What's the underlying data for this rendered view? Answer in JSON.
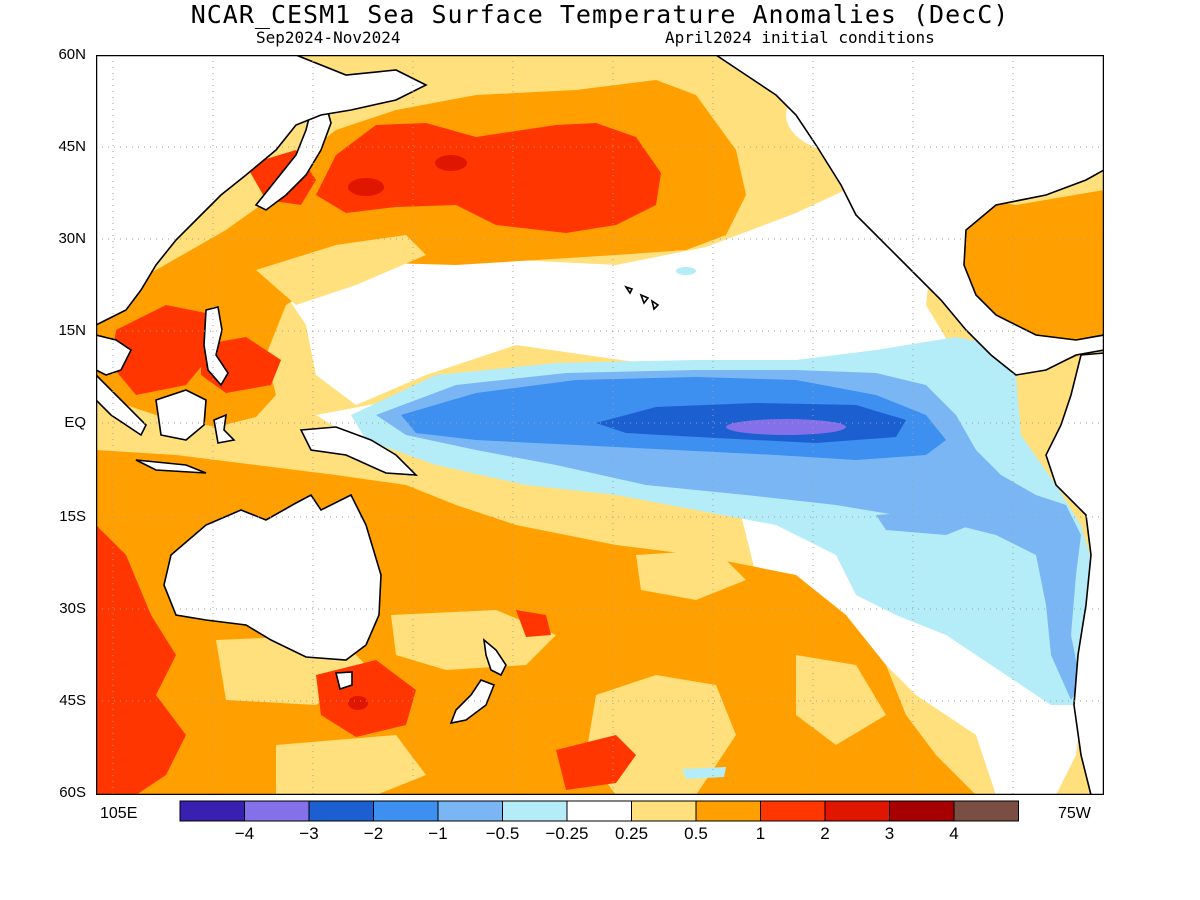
{
  "title": "NCAR_CESM1 Sea Surface Temperature Anomalies (DecC)",
  "subtitle_left": "Sep2024-Nov2024",
  "subtitle_right": "April2024 initial conditions",
  "lat_labels": [
    "60N",
    "45N",
    "30N",
    "15N",
    "EQ",
    "15S",
    "30S",
    "45S",
    "60S"
  ],
  "lon_left": "105E",
  "lon_right": "75W",
  "colorbar": {
    "colors": [
      "#3a20b0",
      "#8470e8",
      "#1c5fd0",
      "#3d8ff0",
      "#7ab6f4",
      "#b4ecf8",
      "#ffffff",
      "#ffe07c",
      "#ffa000",
      "#ff3600",
      "#e01600",
      "#a60000",
      "#7a4e42"
    ],
    "labels": [
      "-4",
      "-3",
      "-2",
      "-1",
      "-0.5",
      "-0.25",
      "0.25",
      "0.5",
      "1",
      "2",
      "3",
      "4"
    ]
  },
  "land_color": "#ffffff",
  "coast_color": "#000000"
}
